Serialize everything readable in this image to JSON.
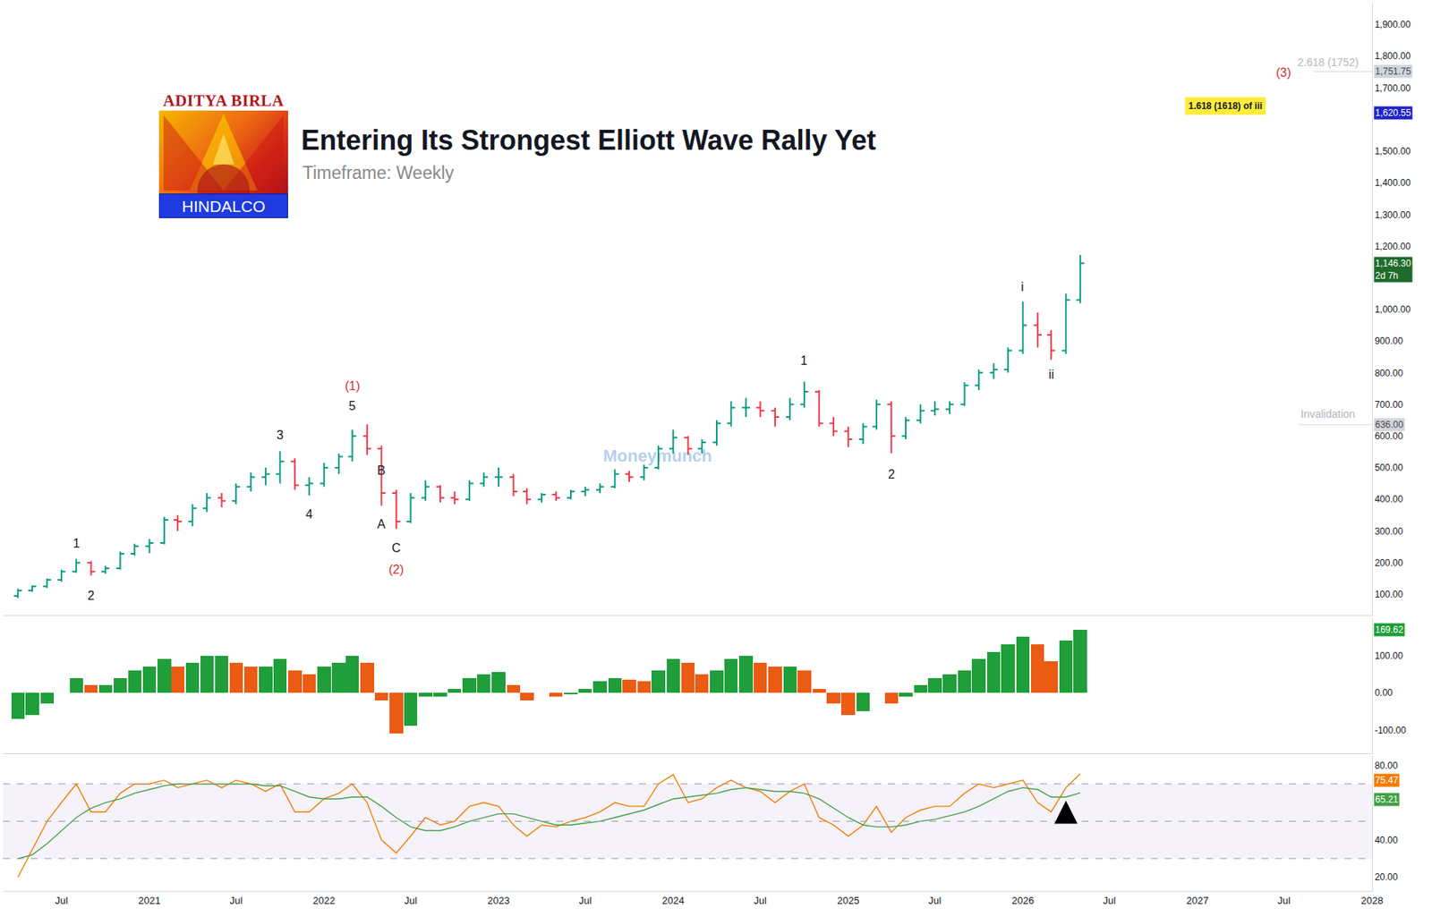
{
  "header": {
    "logo_top": "ADITYA BIRLA",
    "logo_bottom": "HINDALCO",
    "title": "Entering Its Strongest Elliott Wave Rally Yet",
    "subtitle": "Timeframe: Weekly",
    "watermark": "Moneymunch"
  },
  "chart_data": [
    {
      "type": "ohlc",
      "x": [
        "2020-04",
        "2020-05",
        "2020-06",
        "2020-07",
        "2020-08",
        "2020-09",
        "2020-10",
        "2020-11",
        "2020-12",
        "2021-01",
        "2021-02",
        "2021-03",
        "2021-04",
        "2021-05",
        "2021-06",
        "2021-07",
        "2021-08",
        "2021-09",
        "2021-10",
        "2021-11",
        "2021-12",
        "2022-01",
        "2022-02",
        "2022-03",
        "2022-04",
        "2022-05",
        "2022-06",
        "2022-07",
        "2022-08",
        "2022-09",
        "2022-10",
        "2022-11",
        "2022-12",
        "2023-01",
        "2023-02",
        "2023-03",
        "2023-04",
        "2023-05",
        "2023-06",
        "2023-07",
        "2023-08",
        "2023-09",
        "2023-10",
        "2023-11",
        "2023-12",
        "2024-01",
        "2024-02",
        "2024-03",
        "2024-04",
        "2024-05",
        "2024-06",
        "2024-07",
        "2024-08",
        "2024-09",
        "2024-10",
        "2024-11",
        "2024-12",
        "2025-01",
        "2025-02",
        "2025-03",
        "2025-04",
        "2025-05",
        "2025-06",
        "2025-07",
        "2025-08",
        "2025-09",
        "2025-10",
        "2025-11",
        "2025-12",
        "2026-01",
        "2026-02",
        "2026-03",
        "2026-04",
        "2026-05"
      ],
      "open": [
        95,
        112,
        125,
        146,
        172,
        200,
        172,
        182,
        228,
        252,
        262,
        335,
        330,
        372,
        405,
        395,
        440,
        470,
        480,
        520,
        445,
        450,
        500,
        535,
        600,
        560,
        420,
        330,
        405,
        440,
        405,
        400,
        450,
        470,
        470,
        425,
        400,
        415,
        405,
        425,
        430,
        440,
        480,
        470,
        500,
        560,
        595,
        560,
        580,
        640,
        690,
        690,
        680,
        660,
        700,
        740,
        640,
        615,
        590,
        630,
        700,
        600,
        650,
        680,
        685,
        700,
        760,
        800,
        810,
        870,
        950,
        920,
        870,
        1030
      ],
      "high": [
        118,
        128,
        150,
        178,
        212,
        205,
        190,
        235,
        260,
        275,
        345,
        350,
        385,
        420,
        420,
        450,
        485,
        500,
        552,
        530,
        470,
        515,
        545,
        620,
        637,
        570,
        430,
        420,
        460,
        445,
        425,
        460,
        485,
        500,
        480,
        435,
        420,
        425,
        430,
        440,
        450,
        495,
        490,
        510,
        570,
        620,
        600,
        590,
        650,
        710,
        720,
        710,
        690,
        720,
        772,
        745,
        660,
        630,
        640,
        715,
        710,
        660,
        700,
        710,
        710,
        770,
        810,
        830,
        880,
        1025,
        990,
        935,
        1050,
        1172
      ],
      "low": [
        88,
        108,
        120,
        140,
        168,
        160,
        165,
        178,
        222,
        230,
        258,
        300,
        315,
        360,
        375,
        385,
        425,
        445,
        450,
        430,
        412,
        440,
        480,
        520,
        540,
        380,
        307,
        325,
        395,
        390,
        385,
        395,
        440,
        440,
        410,
        385,
        390,
        395,
        400,
        410,
        420,
        435,
        455,
        460,
        495,
        545,
        540,
        545,
        570,
        630,
        660,
        660,
        630,
        650,
        690,
        630,
        600,
        565,
        575,
        620,
        546,
        590,
        640,
        665,
        670,
        695,
        745,
        780,
        800,
        860,
        880,
        841,
        860,
        1020
      ],
      "close": [
        112,
        125,
        146,
        172,
        200,
        172,
        182,
        228,
        252,
        262,
        335,
        330,
        372,
        405,
        395,
        440,
        470,
        480,
        520,
        445,
        450,
        500,
        535,
        600,
        560,
        420,
        330,
        405,
        440,
        405,
        400,
        450,
        470,
        470,
        425,
        400,
        415,
        405,
        425,
        430,
        440,
        480,
        470,
        500,
        560,
        595,
        560,
        580,
        640,
        690,
        690,
        680,
        660,
        700,
        740,
        640,
        615,
        590,
        630,
        700,
        600,
        650,
        680,
        685,
        700,
        760,
        800,
        810,
        870,
        950,
        920,
        870,
        1030,
        1146.3
      ],
      "xlim": [
        "2020-03",
        "2028-01"
      ],
      "ylim": [
        34,
        1968
      ],
      "yticks": [
        {
          "value": 100,
          "label": "100.00"
        },
        {
          "value": 200,
          "label": "200.00"
        },
        {
          "value": 300,
          "label": "300.00"
        },
        {
          "value": 400,
          "label": "400.00"
        },
        {
          "value": 500,
          "label": "500.00"
        },
        {
          "value": 600,
          "label": "600.00"
        },
        {
          "value": 700,
          "label": "700.00"
        },
        {
          "value": 800,
          "label": "800.00"
        },
        {
          "value": 900,
          "label": "900.00"
        },
        {
          "value": 1000,
          "label": "1,000.00"
        },
        {
          "value": 1200,
          "label": "1,200.00"
        },
        {
          "value": 1300,
          "label": "1,300.00"
        },
        {
          "value": 1400,
          "label": "1,400.00"
        },
        {
          "value": 1500,
          "label": "1,500.00"
        },
        {
          "value": 1700,
          "label": "1,700.00"
        },
        {
          "value": 1800,
          "label": "1,800.00"
        },
        {
          "value": 1900,
          "label": "1,900.00"
        }
      ],
      "grid": false,
      "tick_labels": "y",
      "annotations": [
        {
          "text": "1",
          "x": "2020-08",
          "y": 261,
          "color": "#131722"
        },
        {
          "text": "2",
          "x": "2020-09",
          "y": 97,
          "color": "#131722"
        },
        {
          "text": "3",
          "x": "2021-10",
          "y": 603,
          "color": "#131722"
        },
        {
          "text": "4",
          "x": "2021-12",
          "y": 353,
          "color": "#131722"
        },
        {
          "text": "5",
          "x": "2022-03",
          "y": 695,
          "color": "#131722"
        },
        {
          "text": "(1)",
          "x": "2022-03",
          "y": 758,
          "color": "#d32f2f"
        },
        {
          "text": "B",
          "x": "2022-05",
          "y": 491,
          "color": "#131722"
        },
        {
          "text": "A",
          "x": "2022-05",
          "y": 321,
          "color": "#131722"
        },
        {
          "text": "C",
          "x": "2022-06",
          "y": 247,
          "color": "#131722"
        },
        {
          "text": "(2)",
          "x": "2022-06",
          "y": 178,
          "color": "#d32f2f"
        },
        {
          "text": "1",
          "x": "2024-10",
          "y": 839,
          "color": "#131722"
        },
        {
          "text": "2",
          "x": "2025-04",
          "y": 479,
          "color": "#131722"
        },
        {
          "text": "i",
          "x": "2026-01",
          "y": 1071,
          "color": "#131722"
        },
        {
          "text": "ii",
          "x": "2026-03",
          "y": 795,
          "color": "#131722"
        },
        {
          "text": "(3)",
          "x": "2027-07",
          "y": 1749,
          "color": "#d32f2f"
        },
        {
          "text": "2.618 (1752)",
          "x": "2027-10",
          "y": 1781,
          "color": "#b2b5be"
        },
        {
          "text": "1.618 (1618) of iii",
          "x": "2027-03",
          "y": 1643,
          "color": "#131722",
          "marker": "box"
        },
        {
          "text": "Invalidation",
          "x": "2027-10",
          "y": 669,
          "color": "#b2b5be"
        }
      ],
      "levels": [
        {
          "value": 1751.75,
          "label": "1,751.75",
          "color": "#d1d4dc",
          "line_style": "solid",
          "x_start": "2027-09"
        },
        {
          "value": 1620.55,
          "label": "1,620.55",
          "color": "#2023c8",
          "line_style": "none"
        },
        {
          "value": 1146.3,
          "label": "1,146.30",
          "sub_label": "2d 7h",
          "color": "#1e6b2b",
          "line_style": "none"
        },
        {
          "value": 636,
          "label": "636.00",
          "color": "#d1d4dc",
          "line_style": "solid",
          "x_start": "2027-08"
        }
      ]
    },
    {
      "type": "bar",
      "x": [
        "2020-04",
        "2020-05",
        "2020-06",
        "2020-07",
        "2020-08",
        "2020-09",
        "2020-10",
        "2020-11",
        "2020-12",
        "2021-01",
        "2021-02",
        "2021-03",
        "2021-04",
        "2021-05",
        "2021-06",
        "2021-07",
        "2021-08",
        "2021-09",
        "2021-10",
        "2021-11",
        "2021-12",
        "2022-01",
        "2022-02",
        "2022-03",
        "2022-04",
        "2022-05",
        "2022-06",
        "2022-07",
        "2022-08",
        "2022-09",
        "2022-10",
        "2022-11",
        "2022-12",
        "2023-01",
        "2023-02",
        "2023-03",
        "2023-04",
        "2023-05",
        "2023-06",
        "2023-07",
        "2023-08",
        "2023-09",
        "2023-10",
        "2023-11",
        "2023-12",
        "2024-01",
        "2024-02",
        "2024-03",
        "2024-04",
        "2024-05",
        "2024-06",
        "2024-07",
        "2024-08",
        "2024-09",
        "2024-10",
        "2024-11",
        "2024-12",
        "2025-01",
        "2025-02",
        "2025-03",
        "2025-04",
        "2025-05",
        "2025-06",
        "2025-07",
        "2025-08",
        "2025-09",
        "2025-10",
        "2025-11",
        "2025-12",
        "2026-01",
        "2026-02",
        "2026-03",
        "2026-04",
        "2026-05"
      ],
      "values": [
        -70,
        -60,
        -30,
        0,
        40,
        20,
        20,
        40,
        60,
        70,
        90,
        70,
        80,
        100,
        100,
        80,
        70,
        70,
        90,
        60,
        50,
        70,
        80,
        100,
        80,
        -20,
        -110,
        -90,
        -10,
        -10,
        10,
        40,
        50,
        55,
        20,
        -20,
        0,
        -10,
        -5,
        10,
        30,
        40,
        35,
        30,
        60,
        90,
        80,
        50,
        60,
        90,
        100,
        80,
        70,
        70,
        60,
        10,
        -30,
        -60,
        -50,
        0,
        -30,
        -10,
        20,
        40,
        50,
        60,
        90,
        110,
        130,
        150,
        130,
        85,
        140,
        169.62
      ],
      "last_label": "169.62",
      "xlim": [
        "2020-03",
        "2028-01"
      ],
      "ylim": [
        -163,
        200
      ],
      "yticks": [
        {
          "value": -100,
          "label": "-100.00"
        },
        {
          "value": 0,
          "label": "0.00"
        },
        {
          "value": 100,
          "label": "100.00"
        }
      ],
      "grid": false,
      "tick_labels": "y"
    },
    {
      "type": "line",
      "x": [
        "2020-04",
        "2020-05",
        "2020-06",
        "2020-07",
        "2020-08",
        "2020-09",
        "2020-10",
        "2020-11",
        "2020-12",
        "2021-01",
        "2021-02",
        "2021-03",
        "2021-04",
        "2021-05",
        "2021-06",
        "2021-07",
        "2021-08",
        "2021-09",
        "2021-10",
        "2021-11",
        "2021-12",
        "2022-01",
        "2022-02",
        "2022-03",
        "2022-04",
        "2022-05",
        "2022-06",
        "2022-07",
        "2022-08",
        "2022-09",
        "2022-10",
        "2022-11",
        "2022-12",
        "2023-01",
        "2023-02",
        "2023-03",
        "2023-04",
        "2023-05",
        "2023-06",
        "2023-07",
        "2023-08",
        "2023-09",
        "2023-10",
        "2023-11",
        "2023-12",
        "2024-01",
        "2024-02",
        "2024-03",
        "2024-04",
        "2024-05",
        "2024-06",
        "2024-07",
        "2024-08",
        "2024-09",
        "2024-10",
        "2024-11",
        "2024-12",
        "2025-01",
        "2025-02",
        "2025-03",
        "2025-04",
        "2025-05",
        "2025-06",
        "2025-07",
        "2025-08",
        "2025-09",
        "2025-10",
        "2025-11",
        "2025-12",
        "2026-01",
        "2026-02",
        "2026-03",
        "2026-04",
        "2026-05"
      ],
      "series": [
        {
          "color": "#f57c00",
          "last_label": "75.47",
          "values": [
            20,
            35,
            50,
            60,
            70,
            55,
            55,
            65,
            70,
            70,
            72,
            68,
            70,
            72,
            68,
            72,
            70,
            66,
            70,
            55,
            55,
            62,
            65,
            70,
            60,
            40,
            33,
            42,
            52,
            48,
            50,
            58,
            60,
            58,
            48,
            42,
            48,
            47,
            50,
            52,
            55,
            60,
            58,
            58,
            70,
            75,
            60,
            62,
            68,
            72,
            68,
            66,
            60,
            66,
            70,
            52,
            48,
            42,
            48,
            58,
            44,
            52,
            56,
            58,
            58,
            65,
            70,
            68,
            70,
            72,
            60,
            55,
            68,
            75.47
          ]
        },
        {
          "color": "#43a047",
          "last_label": "65.21",
          "values": [
            30,
            32,
            38,
            45,
            52,
            57,
            60,
            62,
            65,
            67,
            69,
            70,
            70,
            70,
            70,
            70,
            70,
            69,
            69,
            66,
            63,
            62,
            62,
            63,
            63,
            58,
            52,
            47,
            45,
            45,
            47,
            50,
            52,
            54,
            54,
            52,
            50,
            48,
            48,
            49,
            50,
            52,
            54,
            56,
            59,
            62,
            63,
            64,
            65,
            67,
            68,
            67,
            66,
            66,
            65,
            62,
            57,
            52,
            48,
            47,
            47,
            48,
            50,
            51,
            53,
            55,
            58,
            62,
            66,
            68,
            67,
            63,
            63,
            65.21
          ]
        }
      ],
      "levels": [
        30,
        50,
        70
      ],
      "line_style": "dashed",
      "markers": [
        {
          "x": "2026-04",
          "y": 61,
          "marker": "arrow-up"
        }
      ],
      "xlim": [
        "2020-03",
        "2028-01"
      ],
      "ylim": [
        12.7,
        85
      ],
      "xticks": [
        {
          "value": "2020-07",
          "label": "Jul"
        },
        {
          "value": "2021-01",
          "label": "2021"
        },
        {
          "value": "2021-07",
          "label": "Jul"
        },
        {
          "value": "2022-01",
          "label": "2022"
        },
        {
          "value": "2022-07",
          "label": "Jul"
        },
        {
          "value": "2023-01",
          "label": "2023"
        },
        {
          "value": "2023-07",
          "label": "Jul"
        },
        {
          "value": "2024-01",
          "label": "2024"
        },
        {
          "value": "2024-07",
          "label": "Jul"
        },
        {
          "value": "2025-01",
          "label": "2025"
        },
        {
          "value": "2025-07",
          "label": "Jul"
        },
        {
          "value": "2026-01",
          "label": "2026"
        },
        {
          "value": "2026-07",
          "label": "Jul"
        },
        {
          "value": "2027-01",
          "label": "2027"
        },
        {
          "value": "2027-07",
          "label": "Jul"
        },
        {
          "value": "2028-01",
          "label": "2028"
        }
      ],
      "yticks": [
        {
          "value": 20,
          "label": "20.00"
        },
        {
          "value": 40,
          "label": "40.00"
        },
        {
          "value": 80,
          "label": "80.00"
        }
      ],
      "grid": false
    }
  ]
}
